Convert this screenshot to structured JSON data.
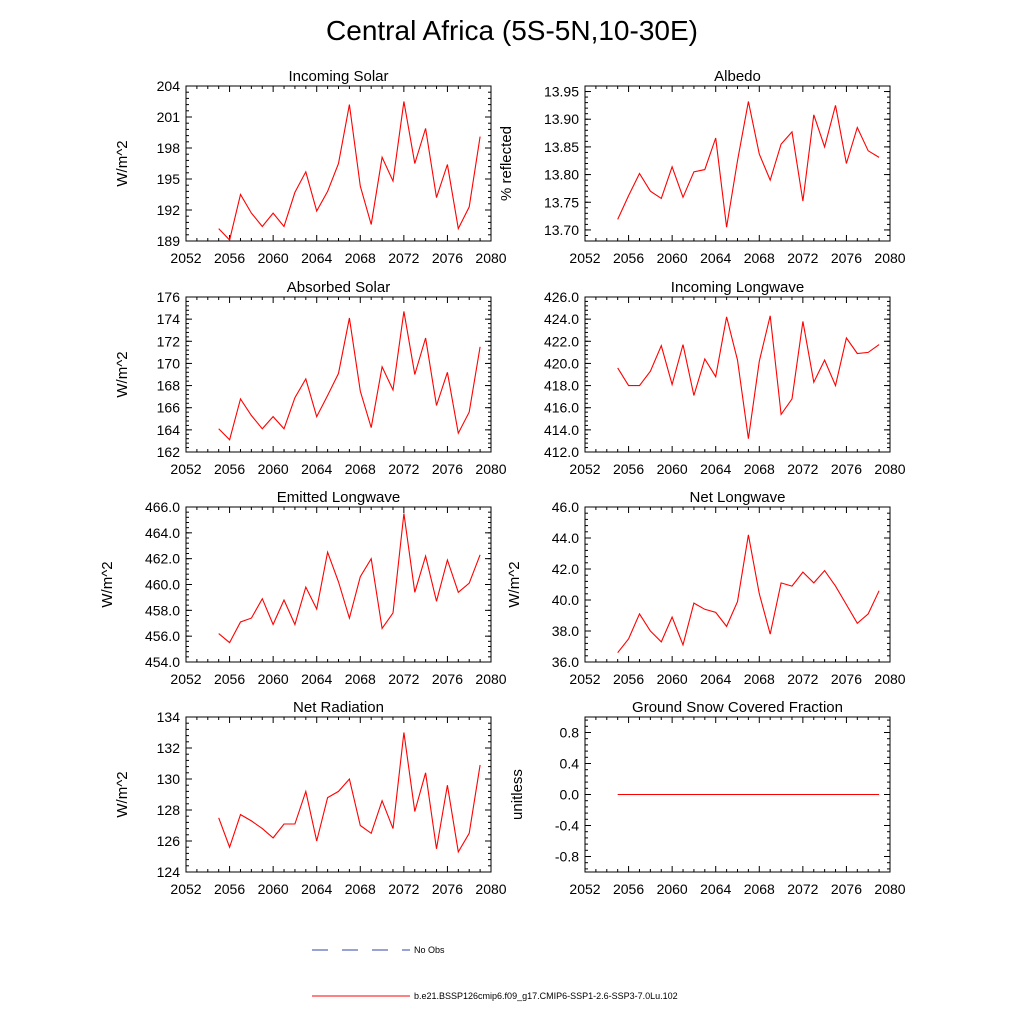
{
  "figure": {
    "title": "Central Africa (5S-5N,10-30E)"
  },
  "colors": {
    "series": "#ff0000",
    "obs": "#3344aa",
    "axis": "#000000"
  },
  "legend": {
    "entries": [
      {
        "label": "No Obs",
        "style": "dashed",
        "color": "#3344aa"
      },
      {
        "label": "b.e21.BSSP126cmip6.f09_g17.CMIP6-SSP1-2.6-SSP3-7.0Lu.102",
        "style": "solid",
        "color": "#ff0000"
      }
    ]
  },
  "chart_data": [
    {
      "type": "line",
      "title": "Incoming Solar",
      "ylabel": "W/m^2",
      "xlim": [
        2052,
        2080
      ],
      "ylim": [
        189,
        204
      ],
      "xticks": [
        2052,
        2056,
        2060,
        2064,
        2068,
        2072,
        2076,
        2080
      ],
      "yticks": [
        189,
        192,
        195,
        198,
        201,
        204
      ],
      "ytick_labels": [
        "189",
        "192",
        "195",
        "198",
        "201",
        "204"
      ],
      "x": [
        2055,
        2056,
        2057,
        2058,
        2059,
        2060,
        2061,
        2062,
        2063,
        2064,
        2065,
        2066,
        2067,
        2068,
        2069,
        2070,
        2071,
        2072,
        2073,
        2074,
        2075,
        2076,
        2077,
        2078,
        2079
      ],
      "values": [
        190.2,
        189.1,
        193.5,
        191.7,
        190.4,
        191.7,
        190.4,
        193.7,
        195.7,
        191.9,
        193.8,
        196.5,
        202.2,
        194.3,
        190.6,
        197.1,
        194.8,
        202.5,
        196.5,
        199.9,
        193.2,
        196.4,
        190.2,
        192.3,
        199.1
      ]
    },
    {
      "type": "line",
      "title": "Albedo",
      "ylabel": "% reflected",
      "xlim": [
        2052,
        2080
      ],
      "ylim": [
        13.68,
        13.96
      ],
      "xticks": [
        2052,
        2056,
        2060,
        2064,
        2068,
        2072,
        2076,
        2080
      ],
      "yticks": [
        13.7,
        13.75,
        13.8,
        13.85,
        13.9,
        13.95
      ],
      "ytick_labels": [
        "13.70",
        "13.75",
        "13.80",
        "13.85",
        "13.90",
        "13.95"
      ],
      "x": [
        2055,
        2056,
        2057,
        2058,
        2059,
        2060,
        2061,
        2062,
        2063,
        2064,
        2065,
        2066,
        2067,
        2068,
        2069,
        2070,
        2071,
        2072,
        2073,
        2074,
        2075,
        2076,
        2077,
        2078,
        2079
      ],
      "values": [
        13.719,
        13.762,
        13.802,
        13.77,
        13.757,
        13.814,
        13.759,
        13.805,
        13.809,
        13.866,
        13.705,
        13.825,
        13.932,
        13.837,
        13.79,
        13.855,
        13.877,
        13.752,
        13.908,
        13.85,
        13.925,
        13.82,
        13.885,
        13.843,
        13.831
      ]
    },
    {
      "type": "line",
      "title": "Absorbed Solar",
      "ylabel": "W/m^2",
      "xlim": [
        2052,
        2080
      ],
      "ylim": [
        162,
        176
      ],
      "xticks": [
        2052,
        2056,
        2060,
        2064,
        2068,
        2072,
        2076,
        2080
      ],
      "yticks": [
        162,
        164,
        166,
        168,
        170,
        172,
        174,
        176
      ],
      "ytick_labels": [
        "162",
        "164",
        "166",
        "168",
        "170",
        "172",
        "174",
        "176"
      ],
      "x": [
        2055,
        2056,
        2057,
        2058,
        2059,
        2060,
        2061,
        2062,
        2063,
        2064,
        2065,
        2066,
        2067,
        2068,
        2069,
        2070,
        2071,
        2072,
        2073,
        2074,
        2075,
        2076,
        2077,
        2078,
        2079
      ],
      "values": [
        164.1,
        163.1,
        166.8,
        165.3,
        164.1,
        165.2,
        164.1,
        166.9,
        168.6,
        165.2,
        167.1,
        169.1,
        174.1,
        167.5,
        164.2,
        169.7,
        167.6,
        174.7,
        169.0,
        172.3,
        166.2,
        169.2,
        163.7,
        165.6,
        171.5
      ]
    },
    {
      "type": "line",
      "title": "Incoming Longwave",
      "ylabel": "",
      "xlim": [
        2052,
        2080
      ],
      "ylim": [
        412,
        426
      ],
      "xticks": [
        2052,
        2056,
        2060,
        2064,
        2068,
        2072,
        2076,
        2080
      ],
      "yticks": [
        412,
        414,
        416,
        418,
        420,
        422,
        424,
        426
      ],
      "ytick_labels": [
        "412.0",
        "414.0",
        "416.0",
        "418.0",
        "420.0",
        "422.0",
        "424.0",
        "426.0"
      ],
      "x": [
        2055,
        2056,
        2057,
        2058,
        2059,
        2060,
        2061,
        2062,
        2063,
        2064,
        2065,
        2066,
        2067,
        2068,
        2069,
        2070,
        2071,
        2072,
        2073,
        2074,
        2075,
        2076,
        2077,
        2078,
        2079
      ],
      "values": [
        419.6,
        418.0,
        418.0,
        419.3,
        421.6,
        418.1,
        421.7,
        417.1,
        420.4,
        418.8,
        424.2,
        420.3,
        413.2,
        420.2,
        424.3,
        415.4,
        416.8,
        423.8,
        418.3,
        420.3,
        418.0,
        422.3,
        420.9,
        421.0,
        421.7
      ]
    },
    {
      "type": "line",
      "title": "Emitted Longwave",
      "ylabel": "W/m^2",
      "xlim": [
        2052,
        2080
      ],
      "ylim": [
        454,
        466
      ],
      "xticks": [
        2052,
        2056,
        2060,
        2064,
        2068,
        2072,
        2076,
        2080
      ],
      "yticks": [
        454,
        456,
        458,
        460,
        462,
        464,
        466
      ],
      "ytick_labels": [
        "454.0",
        "456.0",
        "458.0",
        "460.0",
        "462.0",
        "464.0",
        "466.0"
      ],
      "x": [
        2055,
        2056,
        2057,
        2058,
        2059,
        2060,
        2061,
        2062,
        2063,
        2064,
        2065,
        2066,
        2067,
        2068,
        2069,
        2070,
        2071,
        2072,
        2073,
        2074,
        2075,
        2076,
        2077,
        2078,
        2079
      ],
      "values": [
        456.2,
        455.5,
        457.1,
        457.4,
        458.9,
        456.9,
        458.8,
        456.9,
        459.8,
        458.1,
        462.5,
        460.2,
        457.4,
        460.6,
        462.0,
        456.6,
        457.8,
        465.5,
        459.4,
        462.2,
        458.7,
        461.9,
        459.4,
        460.1,
        462.3
      ]
    },
    {
      "type": "line",
      "title": "Net Longwave",
      "ylabel": "W/m^2",
      "xlim": [
        2052,
        2080
      ],
      "ylim": [
        36,
        46
      ],
      "xticks": [
        2052,
        2056,
        2060,
        2064,
        2068,
        2072,
        2076,
        2080
      ],
      "yticks": [
        36,
        38,
        40,
        42,
        44,
        46
      ],
      "ytick_labels": [
        "36.0",
        "38.0",
        "40.0",
        "42.0",
        "44.0",
        "46.0"
      ],
      "x": [
        2055,
        2056,
        2057,
        2058,
        2059,
        2060,
        2061,
        2062,
        2063,
        2064,
        2065,
        2066,
        2067,
        2068,
        2069,
        2070,
        2071,
        2072,
        2073,
        2074,
        2075,
        2076,
        2077,
        2078,
        2079
      ],
      "values": [
        36.6,
        37.5,
        39.1,
        38.0,
        37.3,
        38.9,
        37.1,
        39.8,
        39.4,
        39.2,
        38.3,
        39.9,
        44.2,
        40.4,
        37.8,
        41.1,
        40.9,
        41.8,
        41.1,
        41.9,
        40.9,
        39.7,
        38.5,
        39.1,
        40.6
      ]
    },
    {
      "type": "line",
      "title": "Net Radiation",
      "ylabel": "W/m^2",
      "xlim": [
        2052,
        2080
      ],
      "ylim": [
        124,
        134
      ],
      "xticks": [
        2052,
        2056,
        2060,
        2064,
        2068,
        2072,
        2076,
        2080
      ],
      "yticks": [
        124,
        126,
        128,
        130,
        132,
        134
      ],
      "ytick_labels": [
        "124",
        "126",
        "128",
        "130",
        "132",
        "134"
      ],
      "x": [
        2055,
        2056,
        2057,
        2058,
        2059,
        2060,
        2061,
        2062,
        2063,
        2064,
        2065,
        2066,
        2067,
        2068,
        2069,
        2070,
        2071,
        2072,
        2073,
        2074,
        2075,
        2076,
        2077,
        2078,
        2079
      ],
      "values": [
        127.5,
        125.6,
        127.7,
        127.3,
        126.8,
        126.2,
        127.1,
        127.1,
        129.2,
        126.0,
        128.8,
        129.2,
        130.0,
        127.0,
        126.5,
        128.6,
        126.8,
        133.0,
        127.9,
        130.4,
        125.5,
        129.6,
        125.3,
        126.5,
        130.9
      ]
    },
    {
      "type": "line",
      "title": "Ground Snow Covered Fraction",
      "ylabel": "unitless",
      "xlim": [
        2052,
        2080
      ],
      "ylim": [
        -1.0,
        1.0
      ],
      "xticks": [
        2052,
        2056,
        2060,
        2064,
        2068,
        2072,
        2076,
        2080
      ],
      "yticks": [
        -0.8,
        -0.4,
        0.0,
        0.4,
        0.8
      ],
      "ytick_labels": [
        "-0.8",
        "-0.4",
        "0.0",
        "0.4",
        "0.8"
      ],
      "x": [
        2055,
        2056,
        2057,
        2058,
        2059,
        2060,
        2061,
        2062,
        2063,
        2064,
        2065,
        2066,
        2067,
        2068,
        2069,
        2070,
        2071,
        2072,
        2073,
        2074,
        2075,
        2076,
        2077,
        2078,
        2079
      ],
      "values": [
        0,
        0,
        0,
        0,
        0,
        0,
        0,
        0,
        0,
        0,
        0,
        0,
        0,
        0,
        0,
        0,
        0,
        0,
        0,
        0,
        0,
        0,
        0,
        0,
        0
      ]
    }
  ]
}
